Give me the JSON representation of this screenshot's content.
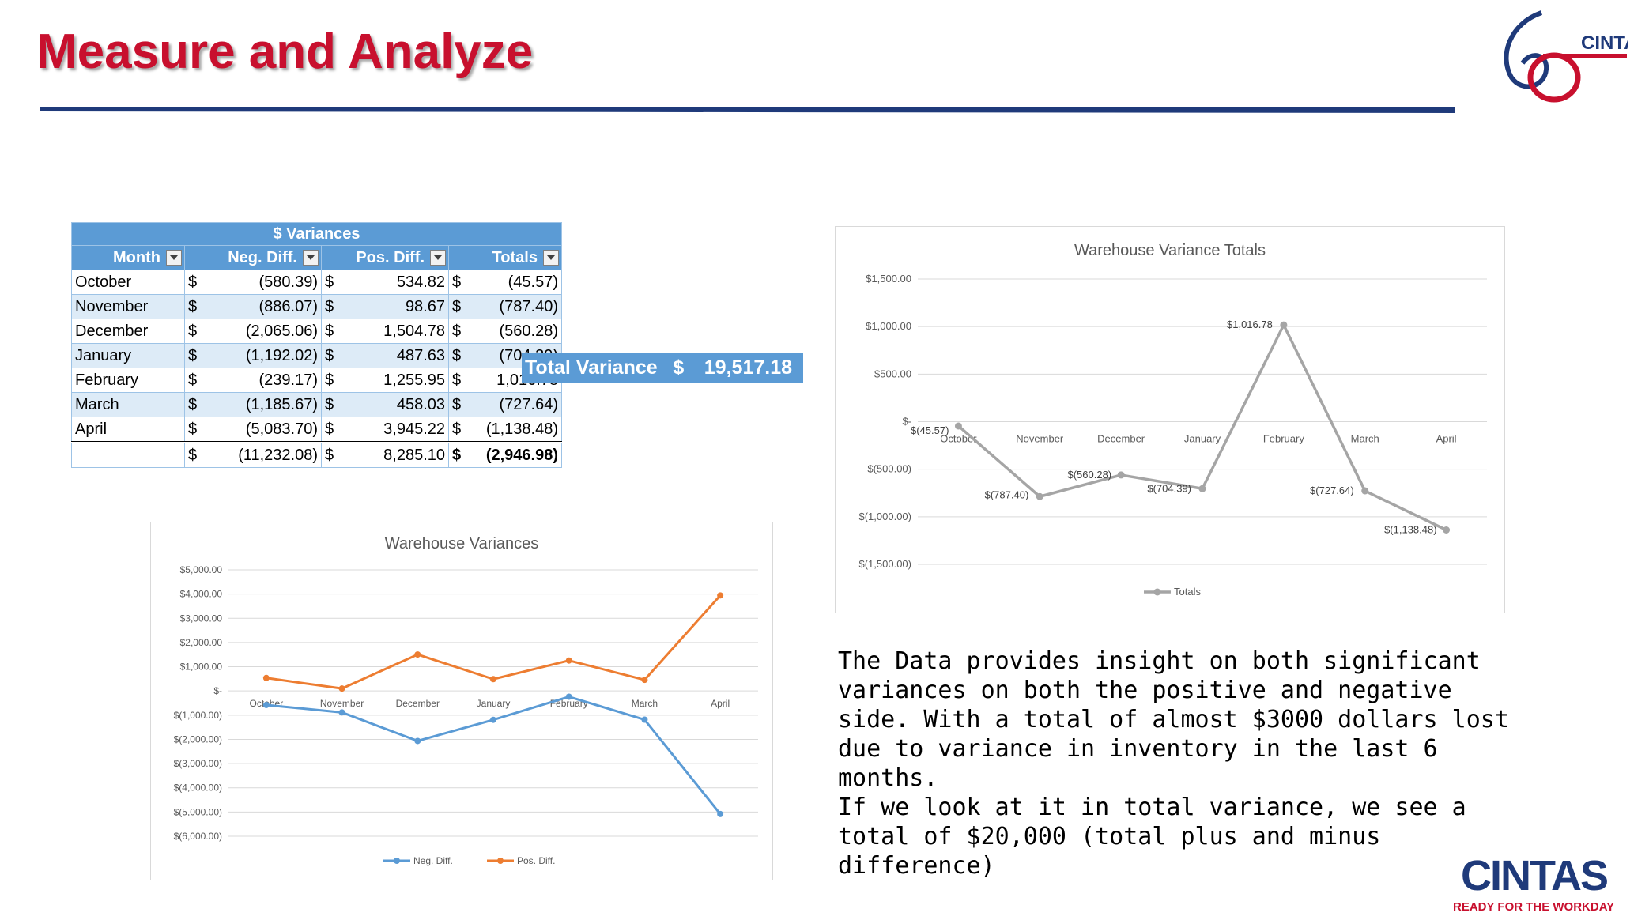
{
  "page": {
    "title": "Measure and Analyze",
    "paragraph": [
      "The Data provides insight on both significant variances on both the positive and negative side. With a total of almost $3000 dollars lost due to variance in inventory in the last 6 months.",
      "If we look at it in total variance, we see a total of $20,000 (total plus and minus difference)"
    ]
  },
  "logos": {
    "top_text": "CINTAS",
    "bottom_text": "CINTAS",
    "tagline": "READY FOR THE WORKDAY"
  },
  "colors": {
    "title_red": "#c8102e",
    "rule_navy": "#1f3a7a",
    "table_blue": "#5b9bd5",
    "table_band": "#ddebf7",
    "neg_series": "#5b9bd5",
    "pos_series": "#ed7d31",
    "totals_series": "#a5a5a5"
  },
  "table": {
    "caption": "$ Variances",
    "headers": [
      "Month",
      "Neg. Diff.",
      "Pos. Diff.",
      "Totals"
    ],
    "currency": "$",
    "rows": [
      {
        "month": "October",
        "neg": "(580.39)",
        "pos": "534.82",
        "tot": "(45.57)"
      },
      {
        "month": "November",
        "neg": "(886.07)",
        "pos": "98.67",
        "tot": "(787.40)"
      },
      {
        "month": "December",
        "neg": "(2,065.06)",
        "pos": "1,504.78",
        "tot": "(560.28)"
      },
      {
        "month": "January",
        "neg": "(1,192.02)",
        "pos": "487.63",
        "tot": "(704.39)"
      },
      {
        "month": "February",
        "neg": "(239.17)",
        "pos": "1,255.95",
        "tot": "1,016.78"
      },
      {
        "month": "March",
        "neg": "(1,185.67)",
        "pos": "458.03",
        "tot": "(727.64)"
      },
      {
        "month": "April",
        "neg": "(5,083.70)",
        "pos": "3,945.22",
        "tot": "(1,138.48)"
      }
    ],
    "totals_row": {
      "neg": "(11,232.08)",
      "pos": "8,285.10",
      "tot": "(2,946.98)"
    }
  },
  "total_variance": {
    "label": "Total Variance",
    "currency": "$",
    "value": "19,517.18"
  },
  "chart_data": [
    {
      "type": "line",
      "title": "Warehouse Variances",
      "categories": [
        "October",
        "November",
        "December",
        "January",
        "February",
        "March",
        "April"
      ],
      "series": [
        {
          "name": "Neg. Diff.",
          "color": "#5b9bd5",
          "values": [
            -580.39,
            -886.07,
            -2065.06,
            -1192.02,
            -239.17,
            -1185.67,
            -5083.7
          ]
        },
        {
          "name": "Pos. Diff.",
          "color": "#ed7d31",
          "values": [
            534.82,
            98.67,
            1504.78,
            487.63,
            1255.95,
            458.03,
            3945.22
          ]
        }
      ],
      "ylim": [
        -6000,
        5000
      ],
      "yticks": [
        5000,
        4000,
        3000,
        2000,
        1000,
        0,
        -1000,
        -2000,
        -3000,
        -4000,
        -5000,
        -6000
      ],
      "ytick_labels": [
        "$5,000.00",
        "$4,000.00",
        "$3,000.00",
        "$2,000.00",
        "$1,000.00",
        "$-",
        "$(1,000.00)",
        "$(2,000.00)",
        "$(3,000.00)",
        "$(4,000.00)",
        "$(5,000.00)",
        "$(6,000.00)"
      ],
      "legend": "bottom",
      "grid": true
    },
    {
      "type": "line",
      "title": "Warehouse Variance Totals",
      "categories": [
        "October",
        "November",
        "December",
        "January",
        "February",
        "March",
        "April"
      ],
      "series": [
        {
          "name": "Totals",
          "color": "#a5a5a5",
          "values": [
            -45.57,
            -787.4,
            -560.28,
            -704.39,
            1016.78,
            -727.64,
            -1138.48
          ]
        }
      ],
      "data_labels": [
        "$(45.57)",
        "$(787.40)",
        "$(560.28)",
        "$(704.39)",
        "$1,016.78",
        "$(727.64)",
        "$(1,138.48)"
      ],
      "ylim": [
        -1500,
        1500
      ],
      "yticks": [
        1500,
        1000,
        500,
        0,
        -500,
        -1000,
        -1500
      ],
      "ytick_labels": [
        "$1,500.00",
        "$1,000.00",
        "$500.00",
        "$-",
        "$(500.00)",
        "$(1,000.00)",
        "$(1,500.00)"
      ],
      "legend": "bottom",
      "grid": true
    }
  ]
}
